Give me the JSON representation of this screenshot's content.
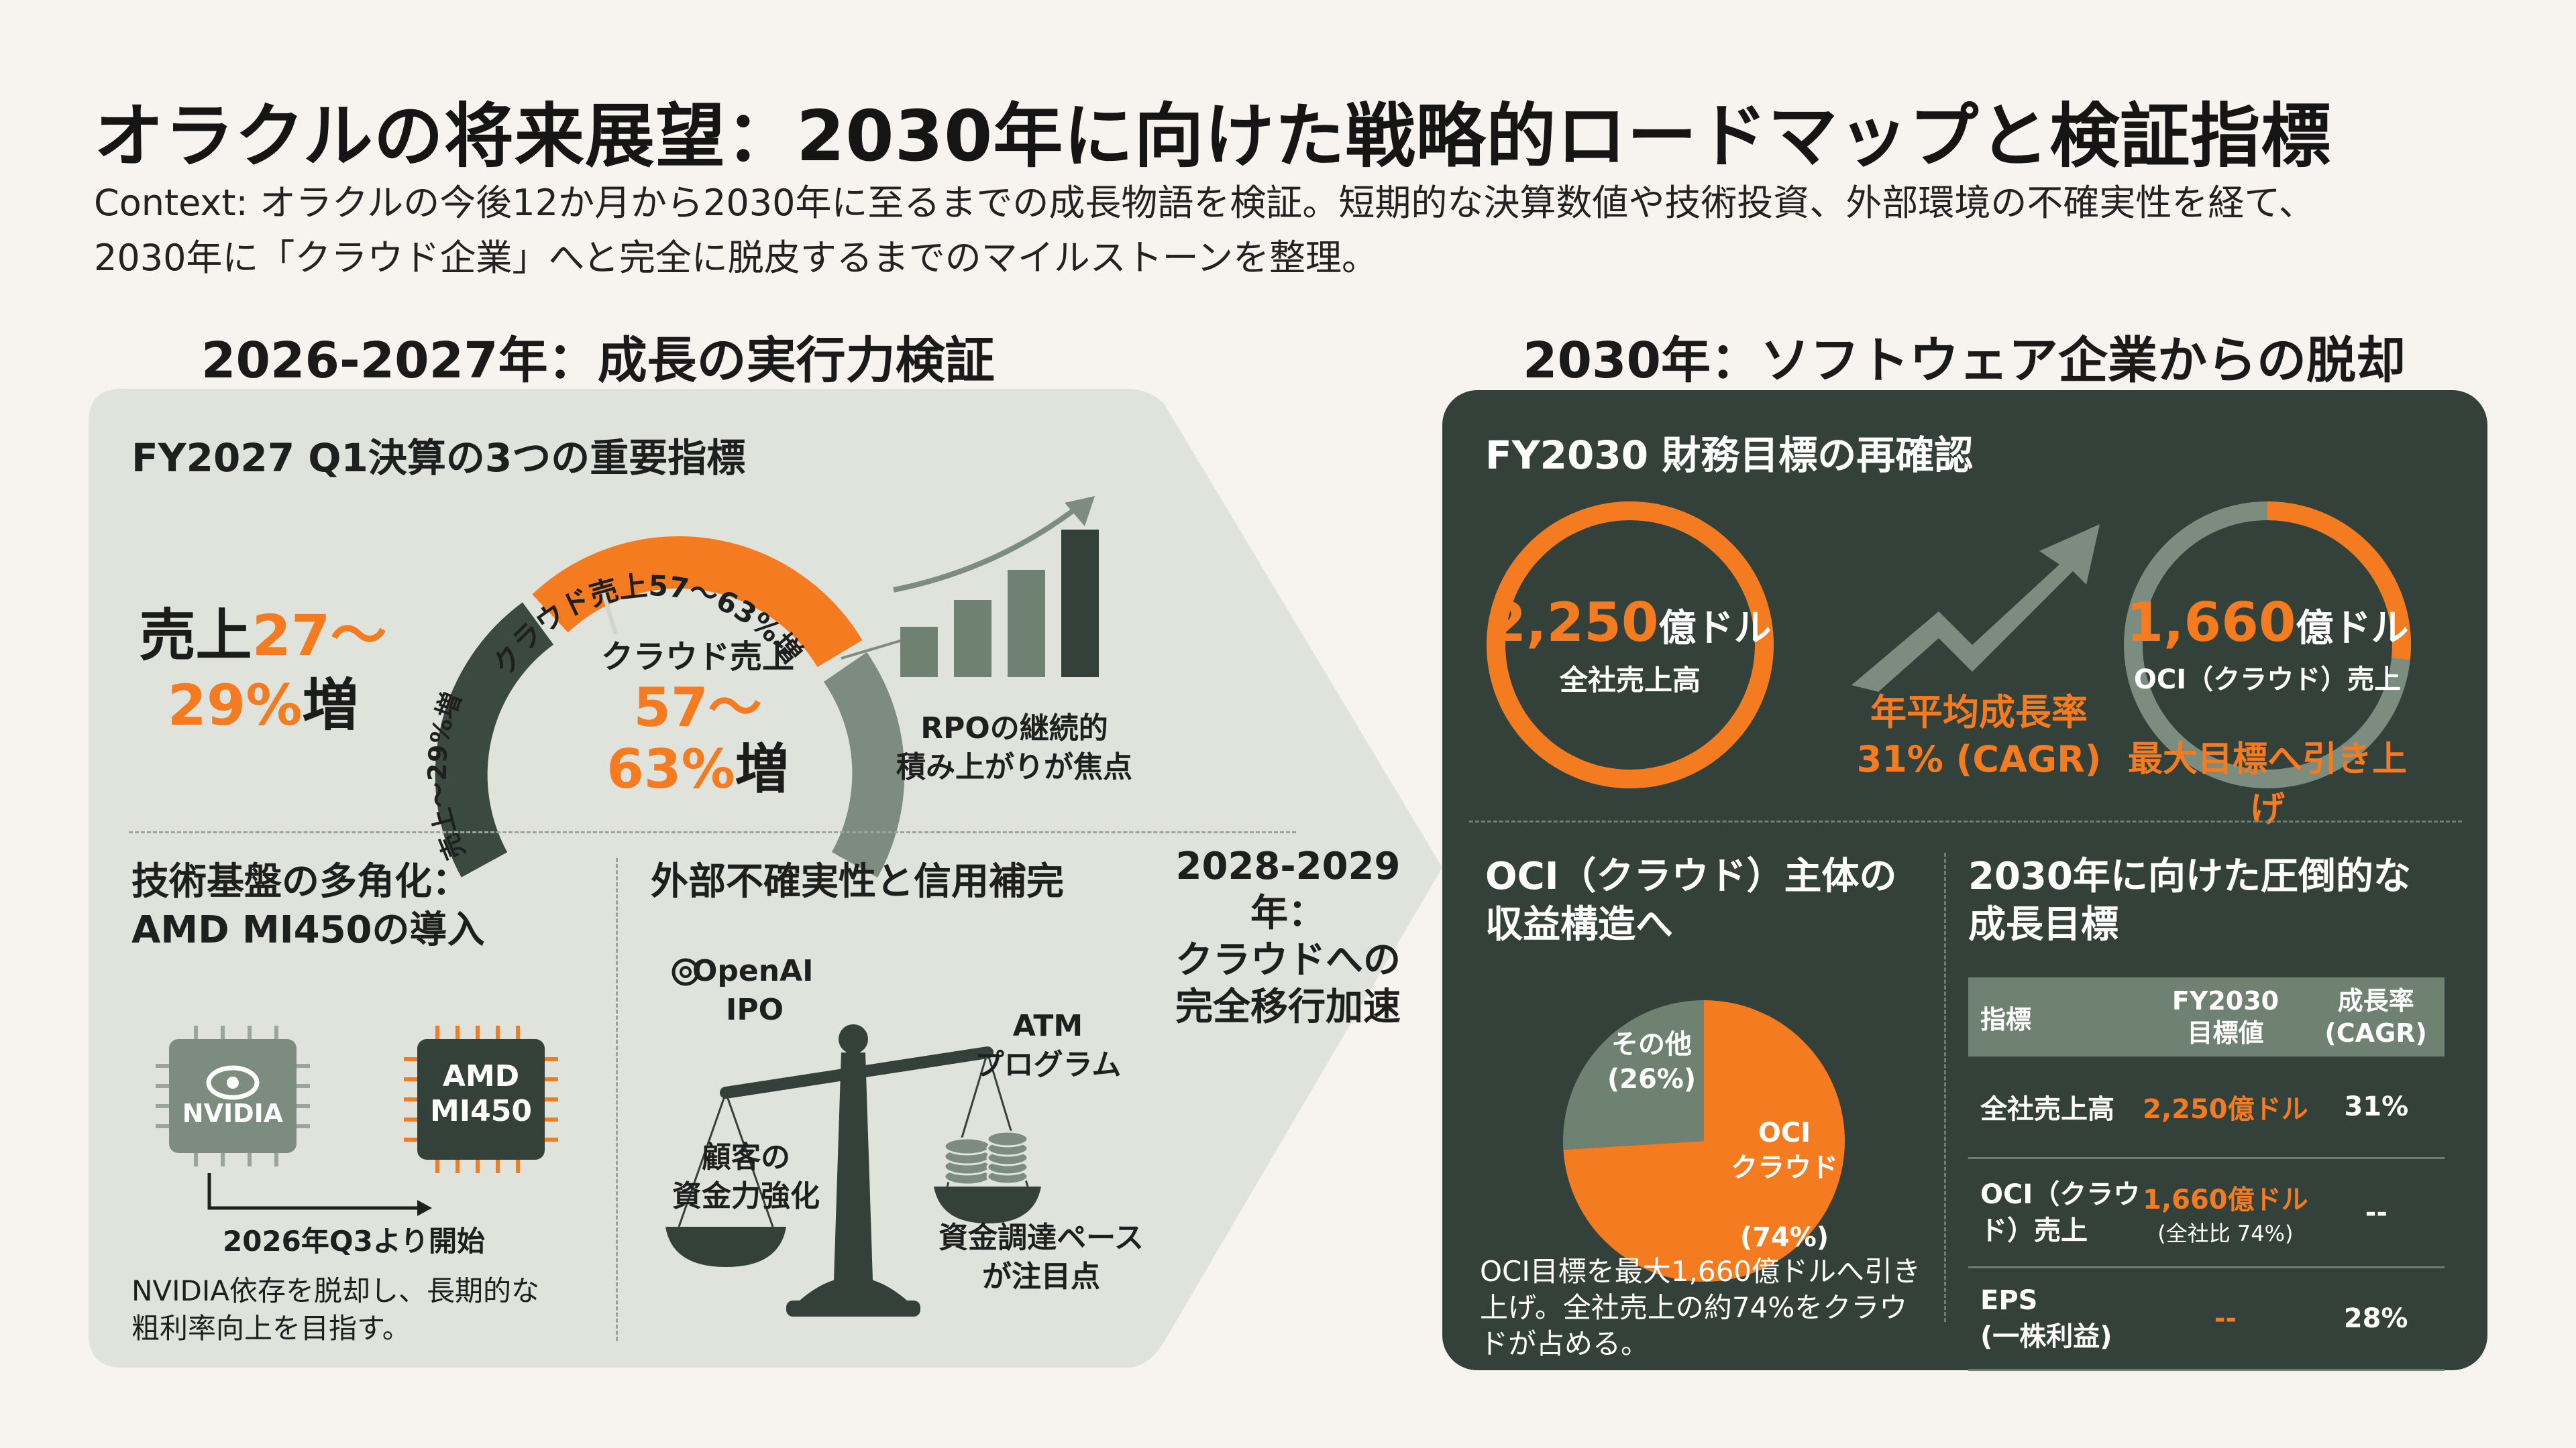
{
  "header": {
    "title": "オラクルの将来展望：2030年に向けた戦略的ロードマップと検証指標",
    "context_line1": "Context: オラクルの今後12か月から2030年に至るまでの成長物語を検証。短期的な決算数値や技術投資、外部環境の不確実性を経て、",
    "context_line2": "2030年に「クラウド企業」へと完全に脱皮するまでのマイルストーンを整理。"
  },
  "left": {
    "heading": "2026-2027年：成長の実行力検証",
    "q1": {
      "title": "FY2027 Q1決算の3つの重要指標",
      "revenue_prefix": "売上",
      "revenue_value": "27〜",
      "revenue_value2": "29%",
      "revenue_suffix": "増",
      "gauge_arc_left": "売上〜29%増",
      "gauge_arc_top": "クラウド売上57〜63%増",
      "cloud_label": "クラウド売上",
      "cloud_value1": "57〜",
      "cloud_value2": "63%",
      "cloud_suffix": "増",
      "rpo_line1": "RPOの継続的",
      "rpo_line2": "積み上がりが焦点",
      "rpo_bars": [
        0.3,
        0.46,
        0.64,
        0.88
      ]
    },
    "tech": {
      "title_line1": "技術基盤の多角化：",
      "title_line2": "AMD MI450の導入",
      "chip1": "NVIDIA",
      "chip2_line1": "AMD",
      "chip2_line2": "MI450",
      "start_label": "2026年Q3より開始",
      "body_line1": "NVIDIA依存を脱却し、長期的な",
      "body_line2": "粗利率向上を目指す。"
    },
    "risk": {
      "title": "外部不確実性と信用補完",
      "openai_line1": "OpenAI",
      "openai_line2": "IPO",
      "atm_line1": "ATM",
      "atm_line2": "プログラム",
      "customer_line1": "顧客の",
      "customer_line2": "資金力強化",
      "funding_line1": "資金調達ペース",
      "funding_line2": "が注目点"
    },
    "transition": {
      "line1": "2028-2029年：",
      "line2": "クラウドへの",
      "line3": "完全移行加速"
    }
  },
  "right": {
    "heading": "2030年：ソフトウェア企業からの脱却",
    "fy2030": {
      "title": "FY2030 財務目標の再確認",
      "revenue_value": "2,250",
      "revenue_unit": "億ドル",
      "revenue_label": "全社売上高",
      "revenue_ring_fraction": 1.0,
      "cagr_line1": "年平均成長率",
      "cagr_line2": "31% (CAGR)",
      "oci_value": "1,660",
      "oci_unit": "億ドル",
      "oci_label": "OCI（クラウド）売上",
      "oci_ring_fraction": 0.74,
      "oci_note": "最大目標へ引き上げ"
    },
    "structure": {
      "title_line1": "OCI（クラウド）主体の",
      "title_line2": "収益構造へ",
      "pie": [
        {
          "label": "OCI\nクラウド",
          "pct_label": "(74%)",
          "value": 74,
          "color": "#f47b20"
        },
        {
          "label": "その他",
          "pct_label": "(26%)",
          "value": 26,
          "color": "#6f8272"
        }
      ],
      "body_line1": "OCI目標を最大1,660億ドルへ引き",
      "body_line2": "上げ。全社売上の約74%をクラウ",
      "body_line3": "ドが占める。"
    },
    "targets": {
      "title_line1": "2030年に向けた圧倒的な",
      "title_line2": "成長目標",
      "headers": [
        "指標",
        "FY2030\n目標値",
        "成長率\n(CAGR)"
      ],
      "rows": [
        {
          "metric": "全社売上高",
          "target": "2,250億ドル",
          "target_sub": "",
          "growth": "31%"
        },
        {
          "metric": "OCI（クラウ\nド）売上",
          "target": "1,660億ドル",
          "target_sub": "(全社比 74%)",
          "growth": "--"
        },
        {
          "metric": "EPS\n(一株利益)",
          "target": "--",
          "target_sub": "",
          "growth": "28%"
        }
      ]
    }
  },
  "colors": {
    "accent": "#f47b20",
    "dark_green": "#34413a",
    "sage": "#6f8272",
    "light_panel": "#dfe3db"
  }
}
